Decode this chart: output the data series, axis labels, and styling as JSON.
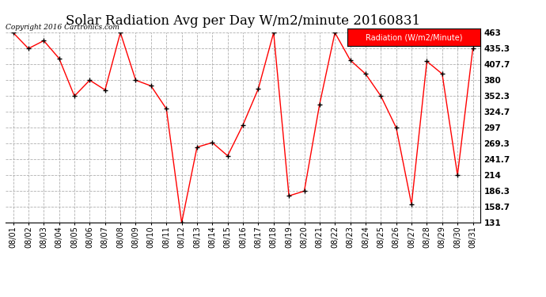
{
  "title": "Solar Radiation Avg per Day W/m2/minute 20160831",
  "copyright_text": "Copyright 2016 Cartronics.com",
  "legend_label": "Radiation (W/m2/Minute)",
  "dates": [
    "08/01",
    "08/02",
    "08/03",
    "08/04",
    "08/05",
    "08/06",
    "08/07",
    "08/08",
    "08/09",
    "08/10",
    "08/11",
    "08/12",
    "08/13",
    "08/14",
    "08/15",
    "08/16",
    "08/17",
    "08/18",
    "08/19",
    "08/20",
    "08/21",
    "08/22",
    "08/23",
    "08/24",
    "08/25",
    "08/26",
    "08/27",
    "08/28",
    "08/29",
    "08/30",
    "08/31"
  ],
  "values": [
    463.0,
    435.3,
    449.0,
    418.0,
    352.3,
    380.0,
    363.0,
    463.0,
    380.0,
    370.0,
    330.0,
    131.0,
    263.0,
    271.0,
    248.0,
    302.0,
    365.0,
    463.0,
    178.0,
    186.3,
    338.0,
    463.0,
    415.0,
    391.0,
    352.3,
    297.0,
    163.0,
    413.0,
    391.0,
    214.0,
    435.3
  ],
  "ylim": [
    131.0,
    463.0
  ],
  "yticks": [
    131.0,
    158.7,
    186.3,
    214.0,
    241.7,
    269.3,
    297.0,
    324.7,
    352.3,
    380.0,
    407.7,
    435.3,
    463.0
  ],
  "line_color": "#ff0000",
  "marker_color": "#000000",
  "bg_color": "#ffffff",
  "grid_color": "#b0b0b0",
  "title_fontsize": 12,
  "legend_bg": "#ff0000",
  "legend_text_color": "#ffffff"
}
